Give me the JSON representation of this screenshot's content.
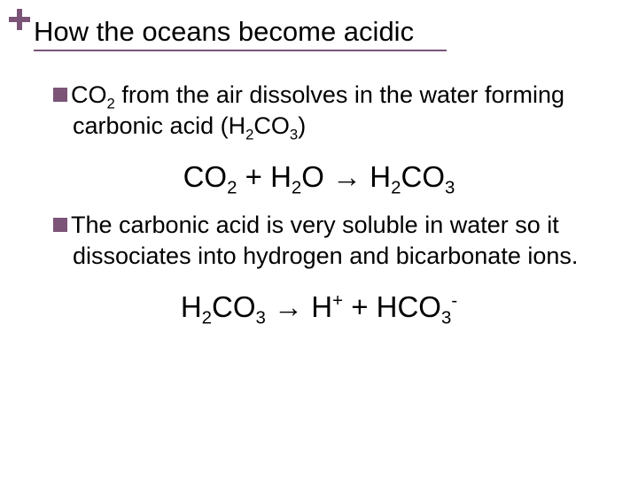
{
  "colors": {
    "accent": "#7b5478",
    "text": "#000000",
    "background": "#ffffff"
  },
  "typography": {
    "title_fontsize": 31,
    "body_fontsize": 27,
    "equation_fontsize": 33,
    "font_family": "Arial"
  },
  "title": "How the oceans become acidic",
  "bullets": [
    {
      "lead": "CO",
      "lead_sub": "2",
      "rest_before_formula": " from the air dissolves in the water forming carbonic acid (H",
      "formula_sub1": "2",
      "formula_mid": "CO",
      "formula_sub2": "3",
      "rest_after_formula": ")"
    },
    {
      "lead": "The",
      "lead_sub": "",
      "rest_before_formula": " carbonic acid is very soluble in water so it dissociates into hydrogen and bicarbonate ions.",
      "formula_sub1": "",
      "formula_mid": "",
      "formula_sub2": "",
      "rest_after_formula": ""
    }
  ],
  "equations": [
    {
      "p1": "CO",
      "p1_sub": "2",
      "p2": " + H",
      "p2_sub": "2",
      "p3": "O  ",
      "arrow": "→",
      "p4": " H",
      "p4_sub": "2",
      "p5": "CO",
      "p5_sub": "3",
      "p6": "",
      "p6_sup": "",
      "p6_sub": ""
    },
    {
      "p1": "H",
      "p1_sub": "2",
      "p2": "CO",
      "p2_sub": "3",
      "p3": " ",
      "arrow": "→",
      "p4": " H",
      "p4_sub": "",
      "p5": "",
      "p5_sub": "",
      "p6_pre_sup": "+",
      "p6": " + HCO",
      "p6_sub": "3",
      "p6_sup": "-"
    }
  ]
}
